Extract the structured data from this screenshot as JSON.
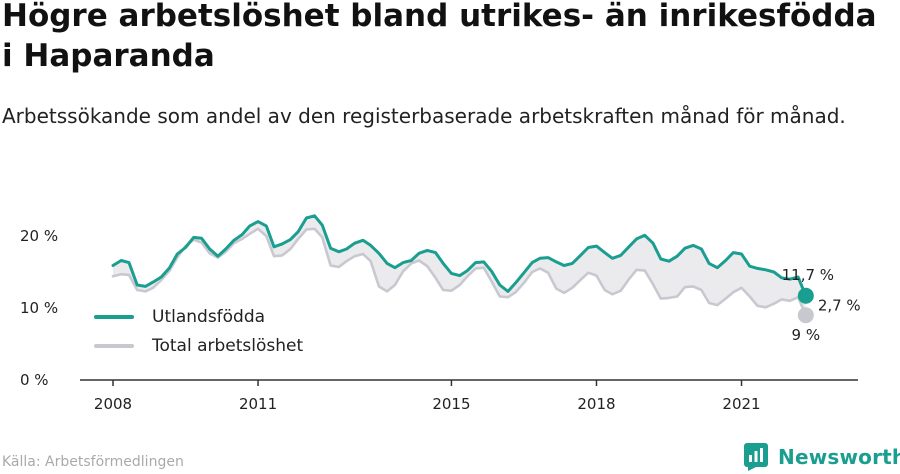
{
  "title": "Högre arbetslöshet bland utrikes- än inrikesfödda i Haparanda",
  "subtitle": "Arbetssökande som andel av den registerbaserade arbetskraften månad för månad.",
  "source": "Källa: Arbetsförmedlingen",
  "brand": "Newsworthy",
  "colors": {
    "utlandsfodda": "#1a9e8f",
    "total": "#c8c8d0",
    "gap_fill": "#ebebee",
    "axis": "#333333"
  },
  "chart_data": {
    "type": "line",
    "title": "Högre arbetslöshet bland utrikes- än inrikesfödda i Haparanda",
    "xlabel": "",
    "ylabel": "",
    "xlim": [
      2008.0,
      2021.92
    ],
    "ylim": [
      0,
      20
    ],
    "x_ticks": [
      2008,
      2011,
      2015,
      2018,
      2021
    ],
    "y_ticks": [
      0,
      10,
      20
    ],
    "y_tick_labels": [
      "0 %",
      "10 %",
      "20 %"
    ],
    "legend": "bottom-left",
    "grid": false,
    "series": [
      {
        "name": "Utlandsfödda",
        "color": "#1a9e8f",
        "end_label": "11,7 %",
        "points": [
          [
            2008.0,
            15.9
          ],
          [
            2008.17,
            16.6
          ],
          [
            2008.33,
            16.3
          ],
          [
            2008.5,
            13.2
          ],
          [
            2008.67,
            13.0
          ],
          [
            2008.83,
            13.6
          ],
          [
            2009.0,
            14.3
          ],
          [
            2009.17,
            15.6
          ],
          [
            2009.33,
            17.5
          ],
          [
            2009.5,
            18.4
          ],
          [
            2009.67,
            19.8
          ],
          [
            2009.83,
            19.7
          ],
          [
            2010.0,
            18.2
          ],
          [
            2010.17,
            17.2
          ],
          [
            2010.33,
            18.2
          ],
          [
            2010.5,
            19.4
          ],
          [
            2010.67,
            20.2
          ],
          [
            2010.83,
            21.4
          ],
          [
            2011.0,
            22.0
          ],
          [
            2011.17,
            21.4
          ],
          [
            2011.33,
            18.5
          ],
          [
            2011.5,
            18.9
          ],
          [
            2011.67,
            19.5
          ],
          [
            2011.83,
            20.6
          ],
          [
            2012.0,
            22.5
          ],
          [
            2012.17,
            22.8
          ],
          [
            2012.33,
            21.5
          ],
          [
            2012.5,
            18.3
          ],
          [
            2012.67,
            17.8
          ],
          [
            2012.83,
            18.2
          ],
          [
            2013.0,
            19.0
          ],
          [
            2013.17,
            19.4
          ],
          [
            2013.33,
            18.7
          ],
          [
            2013.5,
            17.6
          ],
          [
            2013.67,
            16.2
          ],
          [
            2013.83,
            15.6
          ],
          [
            2014.0,
            16.3
          ],
          [
            2014.17,
            16.6
          ],
          [
            2014.33,
            17.6
          ],
          [
            2014.5,
            18.0
          ],
          [
            2014.67,
            17.7
          ],
          [
            2014.83,
            16.2
          ],
          [
            2015.0,
            14.8
          ],
          [
            2015.17,
            14.5
          ],
          [
            2015.33,
            15.2
          ],
          [
            2015.5,
            16.3
          ],
          [
            2015.67,
            16.4
          ],
          [
            2015.83,
            15.1
          ],
          [
            2016.0,
            13.2
          ],
          [
            2016.17,
            12.3
          ],
          [
            2016.33,
            13.5
          ],
          [
            2016.5,
            14.9
          ],
          [
            2016.67,
            16.3
          ],
          [
            2016.83,
            16.9
          ],
          [
            2017.0,
            17.0
          ],
          [
            2017.17,
            16.4
          ],
          [
            2017.33,
            15.9
          ],
          [
            2017.5,
            16.2
          ],
          [
            2017.67,
            17.3
          ],
          [
            2017.83,
            18.4
          ],
          [
            2018.0,
            18.6
          ],
          [
            2018.17,
            17.7
          ],
          [
            2018.33,
            16.9
          ],
          [
            2018.5,
            17.3
          ],
          [
            2018.67,
            18.5
          ],
          [
            2018.83,
            19.6
          ],
          [
            2019.0,
            20.1
          ],
          [
            2019.17,
            19.0
          ],
          [
            2019.33,
            16.8
          ],
          [
            2019.5,
            16.5
          ],
          [
            2019.67,
            17.2
          ],
          [
            2019.83,
            18.3
          ],
          [
            2020.0,
            18.7
          ],
          [
            2020.17,
            18.2
          ],
          [
            2020.33,
            16.2
          ],
          [
            2020.5,
            15.6
          ],
          [
            2020.67,
            16.6
          ],
          [
            2020.83,
            17.7
          ],
          [
            2021.0,
            17.5
          ],
          [
            2021.17,
            15.8
          ],
          [
            2021.33,
            15.5
          ],
          [
            2021.5,
            15.3
          ],
          [
            2021.67,
            15.0
          ],
          [
            2021.83,
            14.2
          ],
          [
            2022.0,
            14.0
          ],
          [
            2022.17,
            14.3
          ],
          [
            2022.33,
            11.7
          ]
        ]
      },
      {
        "name": "Total arbetslöshet",
        "color": "#c8c8d0",
        "end_label": "9 %",
        "points": [
          [
            2008.0,
            14.4
          ],
          [
            2008.17,
            14.7
          ],
          [
            2008.33,
            14.6
          ],
          [
            2008.5,
            12.5
          ],
          [
            2008.67,
            12.3
          ],
          [
            2008.83,
            12.8
          ],
          [
            2009.0,
            13.9
          ],
          [
            2009.17,
            15.2
          ],
          [
            2009.33,
            17.0
          ],
          [
            2009.5,
            18.6
          ],
          [
            2009.67,
            19.5
          ],
          [
            2009.83,
            19.1
          ],
          [
            2010.0,
            17.6
          ],
          [
            2010.17,
            17.0
          ],
          [
            2010.33,
            17.8
          ],
          [
            2010.5,
            19.0
          ],
          [
            2010.67,
            19.6
          ],
          [
            2010.83,
            20.3
          ],
          [
            2011.0,
            21.0
          ],
          [
            2011.17,
            20.0
          ],
          [
            2011.33,
            17.2
          ],
          [
            2011.5,
            17.3
          ],
          [
            2011.67,
            18.2
          ],
          [
            2011.83,
            19.6
          ],
          [
            2012.0,
            20.9
          ],
          [
            2012.17,
            21.0
          ],
          [
            2012.33,
            19.8
          ],
          [
            2012.5,
            15.9
          ],
          [
            2012.67,
            15.7
          ],
          [
            2012.83,
            16.5
          ],
          [
            2013.0,
            17.2
          ],
          [
            2013.17,
            17.5
          ],
          [
            2013.33,
            16.5
          ],
          [
            2013.5,
            13.0
          ],
          [
            2013.67,
            12.3
          ],
          [
            2013.83,
            13.2
          ],
          [
            2014.0,
            15.1
          ],
          [
            2014.17,
            16.2
          ],
          [
            2014.33,
            16.6
          ],
          [
            2014.5,
            15.8
          ],
          [
            2014.67,
            14.2
          ],
          [
            2014.83,
            12.5
          ],
          [
            2015.0,
            12.4
          ],
          [
            2015.17,
            13.2
          ],
          [
            2015.33,
            14.4
          ],
          [
            2015.5,
            15.5
          ],
          [
            2015.67,
            15.6
          ],
          [
            2015.83,
            13.7
          ],
          [
            2016.0,
            11.6
          ],
          [
            2016.17,
            11.5
          ],
          [
            2016.33,
            12.2
          ],
          [
            2016.5,
            13.5
          ],
          [
            2016.67,
            15.0
          ],
          [
            2016.83,
            15.5
          ],
          [
            2017.0,
            14.9
          ],
          [
            2017.17,
            12.7
          ],
          [
            2017.33,
            12.1
          ],
          [
            2017.5,
            12.8
          ],
          [
            2017.67,
            13.9
          ],
          [
            2017.83,
            14.9
          ],
          [
            2018.0,
            14.5
          ],
          [
            2018.17,
            12.5
          ],
          [
            2018.33,
            11.9
          ],
          [
            2018.5,
            12.4
          ],
          [
            2018.67,
            14.0
          ],
          [
            2018.83,
            15.3
          ],
          [
            2019.0,
            15.2
          ],
          [
            2019.17,
            13.3
          ],
          [
            2019.33,
            11.3
          ],
          [
            2019.5,
            11.4
          ],
          [
            2019.67,
            11.6
          ],
          [
            2019.83,
            12.9
          ],
          [
            2020.0,
            13.0
          ],
          [
            2020.17,
            12.5
          ],
          [
            2020.33,
            10.7
          ],
          [
            2020.5,
            10.4
          ],
          [
            2020.67,
            11.3
          ],
          [
            2020.83,
            12.2
          ],
          [
            2021.0,
            12.8
          ],
          [
            2021.17,
            11.6
          ],
          [
            2021.33,
            10.3
          ],
          [
            2021.5,
            10.1
          ],
          [
            2021.67,
            10.6
          ],
          [
            2021.83,
            11.2
          ],
          [
            2022.0,
            11.0
          ],
          [
            2022.17,
            11.5
          ],
          [
            2022.33,
            9.0
          ]
        ]
      }
    ],
    "annotations": [
      {
        "text": "2,7 %",
        "x": 2022.33,
        "y": 10.35
      }
    ]
  }
}
